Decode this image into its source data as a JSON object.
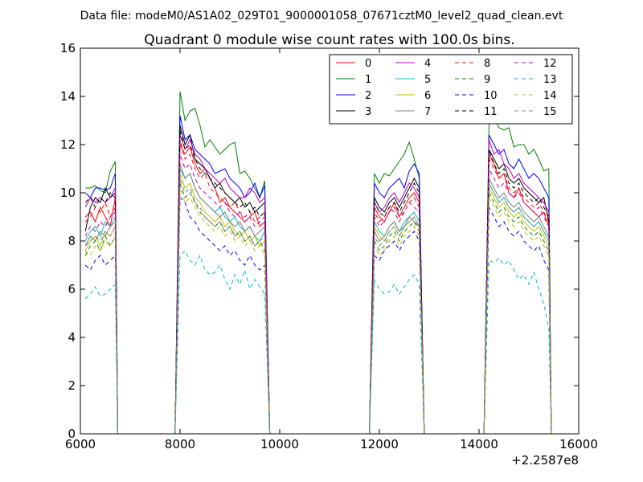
{
  "chart_data": {
    "type": "line",
    "suptitle": "Data file: modeM0/AS1A02_029T01_9000001058_07671cztM0_level2_quad_clean.evt",
    "title": "Quadrant 0 module wise count rates with 100.0s bins.",
    "xlabel": "",
    "ylabel": "",
    "x_offset_label": "+2.2587e8",
    "xlim": [
      6000,
      16000
    ],
    "ylim": [
      0,
      16
    ],
    "xticks": [
      6000,
      8000,
      10000,
      12000,
      14000,
      16000
    ],
    "yticks": [
      0,
      2,
      4,
      6,
      8,
      10,
      12,
      14,
      16
    ],
    "grid": false,
    "legend": {
      "position": "top-right",
      "columns": 4
    },
    "segments": [
      {
        "start": 6100,
        "end": 6700,
        "drop_x": 6750
      },
      {
        "start": 8000,
        "end": 9700,
        "drop_x": 9800
      },
      {
        "start": 11900,
        "end": 12800,
        "drop_x": 12900
      },
      {
        "start": 14200,
        "end": 15400,
        "drop_x": 15450
      }
    ],
    "zero_gaps": [
      [
        6750,
        7900
      ],
      [
        9800,
        11800
      ],
      [
        12900,
        14100
      ]
    ],
    "series": [
      {
        "name": "0",
        "color": "#ff0000",
        "dash": "solid",
        "segment_values": [
          [
            9.0,
            9.2,
            8.8,
            9.4,
            9.0,
            8.6,
            9.8
          ],
          [
            12.0,
            11.6,
            11.9,
            11.2,
            10.8,
            11.0,
            10.6,
            10.2,
            9.6,
            9.8,
            9.4,
            9.2,
            9.0,
            8.8,
            9.0,
            9.2,
            8.6,
            8.8
          ],
          [
            9.4,
            9.0,
            8.8,
            9.2,
            9.6,
            9.0,
            9.4,
            9.8,
            10.0,
            9.6
          ],
          [
            11.6,
            11.2,
            10.6,
            10.8,
            10.0,
            9.8,
            10.2,
            9.6,
            9.4,
            9.2,
            9.0,
            9.2,
            8.6
          ]
        ]
      },
      {
        "name": "1",
        "color": "#008000",
        "dash": "solid",
        "segment_values": [
          [
            10.2,
            10.2,
            10.3,
            10.1,
            10.0,
            10.9,
            11.3
          ],
          [
            14.2,
            13.0,
            13.4,
            13.5,
            12.8,
            11.9,
            12.2,
            11.9,
            11.6,
            11.8,
            12.0,
            12.1,
            10.8,
            10.9,
            10.6,
            10.2,
            9.8,
            10.5
          ],
          [
            10.8,
            10.4,
            10.8,
            10.7,
            11.0,
            11.3,
            11.6,
            12.1,
            11.4,
            10.6
          ],
          [
            12.8,
            13.1,
            12.7,
            12.6,
            12.7,
            11.9,
            12.0,
            12.0,
            11.6,
            11.8,
            11.4,
            10.9,
            11.0
          ]
        ]
      },
      {
        "name": "2",
        "color": "#0000ff",
        "dash": "solid",
        "segment_values": [
          [
            10.0,
            9.8,
            10.2,
            10.2,
            10.1,
            10.2,
            10.8
          ],
          [
            13.2,
            12.2,
            12.4,
            11.8,
            11.6,
            11.4,
            11.2,
            10.8,
            10.9,
            11.0,
            10.6,
            10.4,
            10.2,
            9.8,
            10.0,
            10.4,
            9.8,
            10.3
          ],
          [
            10.4,
            10.0,
            9.8,
            10.2,
            10.4,
            10.6,
            10.2,
            10.9,
            11.2,
            10.8
          ],
          [
            12.4,
            12.0,
            11.6,
            11.8,
            11.2,
            11.0,
            11.4,
            11.0,
            10.6,
            10.8,
            10.6,
            10.2,
            9.8
          ]
        ]
      },
      {
        "name": "3",
        "color": "#000000",
        "dash": "solid",
        "segment_values": [
          [
            8.4,
            9.4,
            9.8,
            9.6,
            10.2,
            9.8,
            10.0
          ],
          [
            12.8,
            12.0,
            12.4,
            11.4,
            11.2,
            11.0,
            10.6,
            10.2,
            10.4,
            10.0,
            9.8,
            9.6,
            9.8,
            9.4,
            9.6,
            9.2,
            9.4,
            9.6
          ],
          [
            9.8,
            9.4,
            9.2,
            9.6,
            9.8,
            9.4,
            9.8,
            10.2,
            10.6,
            10.2
          ],
          [
            11.8,
            11.4,
            11.0,
            11.2,
            10.6,
            10.4,
            10.6,
            10.2,
            10.0,
            9.8,
            9.6,
            9.8,
            8.8
          ]
        ]
      },
      {
        "name": "4",
        "color": "#bf00bf",
        "dash": "solid",
        "segment_values": [
          [
            9.4,
            9.8,
            9.6,
            9.8,
            9.6,
            9.8,
            10.2
          ],
          [
            12.4,
            11.8,
            12.2,
            11.6,
            11.4,
            11.0,
            10.8,
            10.6,
            10.4,
            10.6,
            10.2,
            10.0,
            9.8,
            9.8,
            10.2,
            10.0,
            9.6,
            9.8
          ],
          [
            9.6,
            9.2,
            9.4,
            9.8,
            10.0,
            9.6,
            10.0,
            10.4,
            10.2,
            9.8
          ],
          [
            12.2,
            11.6,
            11.8,
            11.2,
            11.0,
            10.6,
            10.8,
            10.4,
            10.2,
            10.0,
            9.8,
            9.6,
            9.2
          ]
        ]
      },
      {
        "name": "5",
        "color": "#00bfbf",
        "dash": "solid",
        "segment_values": [
          [
            8.0,
            8.4,
            8.6,
            8.2,
            8.8,
            8.6,
            9.0
          ],
          [
            11.0,
            10.6,
            10.8,
            10.2,
            9.8,
            9.6,
            9.4,
            9.2,
            9.4,
            9.0,
            8.8,
            9.0,
            8.6,
            8.4,
            8.6,
            8.2,
            8.0,
            8.4
          ],
          [
            8.8,
            8.4,
            8.2,
            8.6,
            8.8,
            8.4,
            8.8,
            9.0,
            9.2,
            8.8
          ],
          [
            10.4,
            10.0,
            9.6,
            9.8,
            9.4,
            9.2,
            9.4,
            9.0,
            8.8,
            8.6,
            8.8,
            8.4,
            8.0
          ]
        ]
      },
      {
        "name": "6",
        "color": "#bfbf00",
        "dash": "solid",
        "segment_values": [
          [
            7.6,
            8.0,
            8.2,
            7.8,
            8.4,
            8.2,
            8.6
          ],
          [
            10.8,
            10.2,
            10.4,
            9.8,
            9.6,
            9.2,
            9.0,
            8.8,
            9.0,
            8.6,
            8.8,
            8.4,
            8.2,
            8.4,
            8.0,
            8.2,
            7.8,
            8.0
          ],
          [
            8.6,
            8.2,
            8.0,
            8.4,
            8.6,
            8.2,
            8.6,
            8.8,
            9.0,
            8.6
          ],
          [
            10.2,
            9.8,
            9.4,
            9.6,
            9.2,
            9.0,
            9.2,
            8.8,
            8.6,
            8.4,
            8.6,
            8.2,
            7.8
          ]
        ]
      },
      {
        "name": "7",
        "color": "#808080",
        "dash": "solid",
        "segment_values": [
          [
            7.8,
            8.2,
            8.0,
            8.4,
            8.2,
            8.6,
            8.8
          ],
          [
            11.2,
            10.6,
            10.8,
            10.2,
            9.8,
            9.6,
            9.4,
            9.2,
            9.0,
            9.2,
            8.8,
            8.6,
            8.8,
            8.4,
            8.6,
            8.2,
            8.4,
            8.6
          ],
          [
            8.4,
            8.0,
            8.2,
            8.6,
            8.8,
            8.4,
            8.6,
            9.0,
            8.8,
            8.6
          ],
          [
            10.6,
            10.2,
            9.8,
            10.0,
            9.6,
            9.4,
            9.6,
            9.2,
            9.0,
            8.8,
            9.0,
            8.6,
            8.2
          ]
        ]
      },
      {
        "name": "8",
        "color": "#ff0000",
        "dash": "dashed",
        "segment_values": [
          [
            8.8,
            9.0,
            9.4,
            9.2,
            9.6,
            9.0,
            9.4
          ],
          [
            12.2,
            11.4,
            11.6,
            11.0,
            10.6,
            10.8,
            10.2,
            10.0,
            9.8,
            9.6,
            9.4,
            9.6,
            9.2,
            9.0,
            9.2,
            8.8,
            9.0,
            9.2
          ],
          [
            9.2,
            8.8,
            9.0,
            9.4,
            9.2,
            8.8,
            9.2,
            9.6,
            9.8,
            9.4
          ],
          [
            11.4,
            11.0,
            10.6,
            10.8,
            10.2,
            10.0,
            10.2,
            9.8,
            9.6,
            9.4,
            9.6,
            9.2,
            8.8
          ]
        ]
      },
      {
        "name": "9",
        "color": "#008000",
        "dash": "dashed",
        "segment_values": [
          [
            7.4,
            7.8,
            8.0,
            7.6,
            8.2,
            7.8,
            8.2
          ],
          [
            10.4,
            9.8,
            10.0,
            9.6,
            9.2,
            9.0,
            8.8,
            8.6,
            8.8,
            8.4,
            8.6,
            8.2,
            8.4,
            8.0,
            8.2,
            7.8,
            8.0,
            7.6
          ],
          [
            8.0,
            7.6,
            7.8,
            8.2,
            8.4,
            8.0,
            8.4,
            8.6,
            8.8,
            8.4
          ],
          [
            10.0,
            9.6,
            9.2,
            9.4,
            9.0,
            8.8,
            9.0,
            8.6,
            8.4,
            8.2,
            8.4,
            8.0,
            7.6
          ]
        ]
      },
      {
        "name": "10",
        "color": "#0000ff",
        "dash": "dashed",
        "segment_values": [
          [
            7.0,
            6.8,
            7.2,
            7.4,
            7.0,
            7.2,
            7.4
          ],
          [
            9.8,
            9.6,
            9.0,
            8.8,
            8.4,
            8.2,
            8.0,
            7.8,
            7.6,
            7.8,
            7.4,
            7.6,
            7.2,
            7.0,
            7.4,
            7.0,
            6.8,
            7.0
          ],
          [
            7.4,
            7.2,
            7.6,
            7.8,
            8.0,
            7.6,
            8.0,
            8.2,
            8.4,
            8.0
          ],
          [
            9.4,
            9.0,
            8.6,
            8.8,
            8.4,
            8.2,
            8.4,
            8.0,
            7.8,
            7.6,
            7.8,
            7.2,
            6.8
          ]
        ]
      },
      {
        "name": "11",
        "color": "#000000",
        "dash": "dashed",
        "segment_values": [
          [
            9.6,
            9.8,
            9.4,
            9.8,
            9.6,
            10.0,
            9.8
          ],
          [
            12.6,
            11.8,
            12.0,
            11.4,
            11.0,
            10.8,
            10.6,
            10.4,
            10.2,
            10.0,
            9.8,
            9.6,
            9.4,
            9.6,
            9.2,
            9.4,
            9.0,
            9.2
          ],
          [
            9.6,
            9.2,
            9.0,
            9.4,
            9.6,
            9.2,
            9.6,
            10.0,
            10.4,
            10.0
          ],
          [
            11.8,
            11.2,
            10.8,
            11.0,
            10.4,
            10.2,
            10.4,
            10.0,
            9.8,
            9.6,
            9.8,
            9.4,
            9.0
          ]
        ]
      },
      {
        "name": "12",
        "color": "#bf00bf",
        "dash": "dashed",
        "segment_values": [
          [
            8.2,
            8.6,
            8.4,
            8.8,
            8.6,
            9.0,
            9.2
          ],
          [
            11.6,
            11.0,
            11.2,
            10.6,
            10.2,
            10.0,
            9.8,
            9.6,
            9.4,
            9.6,
            9.2,
            9.0,
            9.2,
            8.8,
            9.0,
            8.6,
            8.8,
            9.0
          ],
          [
            9.0,
            8.6,
            8.8,
            9.2,
            9.4,
            9.0,
            9.2,
            9.6,
            9.4,
            9.2
          ],
          [
            11.0,
            10.6,
            10.2,
            10.4,
            10.0,
            9.8,
            10.0,
            9.6,
            9.4,
            9.2,
            9.4,
            9.0,
            8.6
          ]
        ]
      },
      {
        "name": "13",
        "color": "#00bfbf",
        "dash": "dashed",
        "segment_values": [
          [
            5.6,
            5.8,
            6.1,
            5.7,
            5.8,
            6.0,
            6.2
          ],
          [
            7.4,
            7.6,
            7.2,
            7.0,
            7.4,
            6.8,
            6.6,
            6.7,
            7.0,
            6.4,
            6.0,
            6.6,
            6.2,
            6.8,
            6.0,
            6.4,
            6.1,
            5.8
          ],
          [
            6.4,
            6.0,
            5.8,
            5.9,
            6.2,
            5.8,
            6.1,
            6.4,
            6.6,
            6.2
          ],
          [
            7.2,
            7.1,
            7.3,
            7.0,
            7.2,
            6.8,
            6.4,
            6.6,
            6.2,
            6.7,
            6.0,
            5.4,
            4.4
          ]
        ]
      },
      {
        "name": "14",
        "color": "#bfbf00",
        "dash": "dashed",
        "segment_values": [
          [
            7.6,
            7.4,
            7.8,
            7.6,
            8.0,
            7.8,
            8.2
          ],
          [
            10.2,
            9.6,
            9.8,
            9.4,
            9.0,
            8.8,
            8.6,
            8.4,
            8.6,
            8.2,
            8.4,
            8.0,
            8.2,
            7.8,
            8.0,
            7.6,
            7.8,
            7.4
          ],
          [
            7.8,
            7.4,
            7.6,
            8.0,
            8.2,
            7.8,
            8.2,
            8.4,
            8.6,
            8.2
          ],
          [
            9.8,
            9.4,
            9.0,
            9.2,
            8.8,
            8.6,
            8.8,
            8.4,
            8.2,
            8.0,
            8.2,
            7.8,
            7.4
          ]
        ]
      },
      {
        "name": "15",
        "color": "#808080",
        "dash": "dashed",
        "segment_values": [
          [
            7.8,
            8.0,
            8.2,
            8.0,
            8.4,
            8.2,
            8.6
          ],
          [
            10.6,
            10.0,
            10.2,
            9.6,
            9.4,
            9.0,
            8.8,
            8.6,
            8.8,
            8.4,
            8.6,
            8.2,
            8.4,
            8.0,
            8.2,
            7.8,
            8.0,
            8.2
          ],
          [
            8.2,
            7.8,
            8.0,
            8.4,
            8.6,
            8.2,
            8.6,
            8.8,
            9.0,
            8.6
          ],
          [
            10.4,
            10.0,
            9.6,
            9.8,
            9.4,
            9.2,
            9.4,
            9.0,
            8.8,
            8.6,
            8.8,
            8.4,
            8.0
          ]
        ]
      }
    ]
  }
}
